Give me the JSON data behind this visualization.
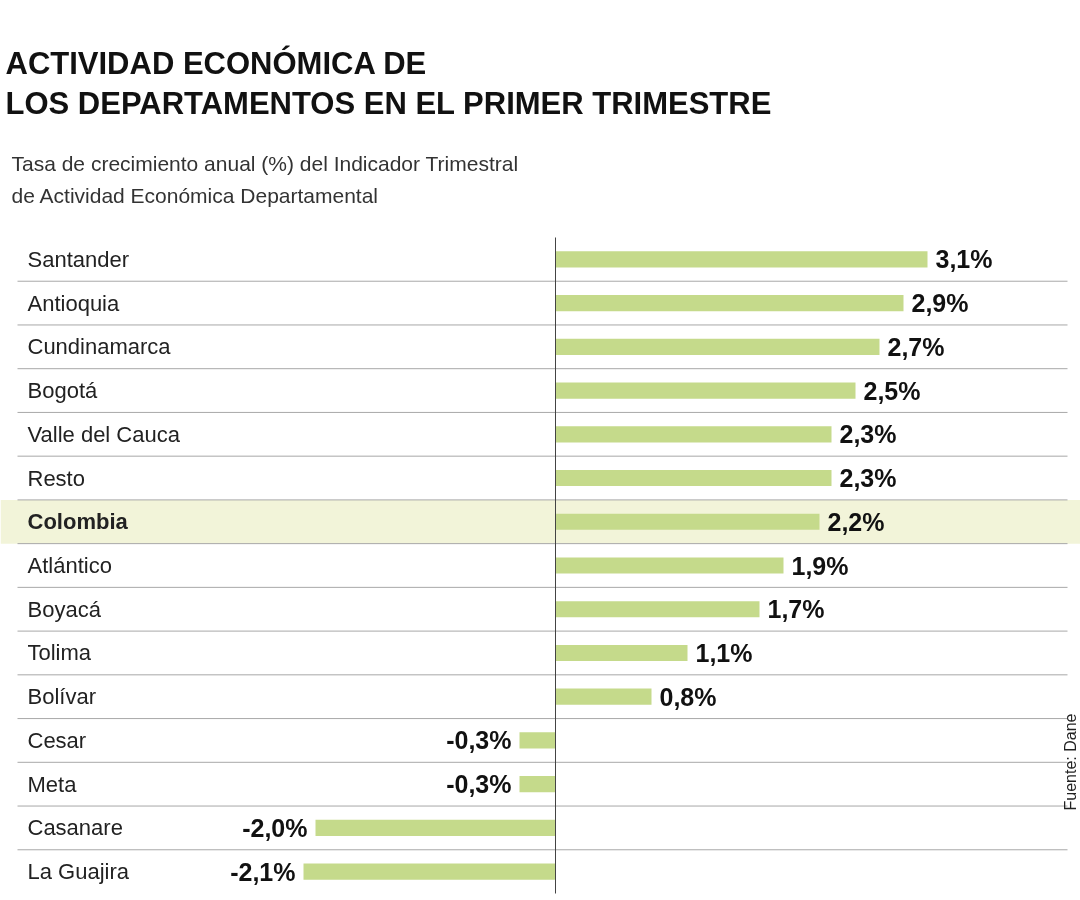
{
  "chart_data": {
    "type": "bar",
    "orientation": "horizontal",
    "title": "ACTIVIDAD ECONÓMICA DE\nLOS DEPARTAMENTOS EN EL PRIMER TRIMESTRE",
    "subtitle": "Tasa de crecimiento anual (%) del Indicador Trimestral\nde Actividad Económica Departamental",
    "categories": [
      "Santander",
      "Antioquia",
      "Cundinamarca",
      "Bogotá",
      "Valle del Cauca",
      "Resto",
      "Colombia",
      "Atlántico",
      "Boyacá",
      "Tolima",
      "Bolívar",
      "Cesar",
      "Meta",
      "Casanare",
      "La Guajira"
    ],
    "values": [
      3.1,
      2.9,
      2.7,
      2.5,
      2.3,
      2.3,
      2.2,
      1.9,
      1.7,
      1.1,
      0.8,
      -0.3,
      -0.3,
      -2.0,
      -2.1
    ],
    "value_labels": [
      "3,1%",
      "2,9%",
      "2,7%",
      "2,5%",
      "2,3%",
      "2,3%",
      "2,2%",
      "1,9%",
      "1,7%",
      "1,1%",
      "0,8%",
      "-0,3%",
      "-0,3%",
      "-2,0%",
      "-2,1%"
    ],
    "color": "#c5da8b",
    "grid": "y",
    "bands": [
      {
        "axis": "y",
        "from": "Colombia",
        "to": "Colombia",
        "color": "#f2f4d9"
      }
    ],
    "annotations": [
      "Fuente: Dane"
    ]
  }
}
